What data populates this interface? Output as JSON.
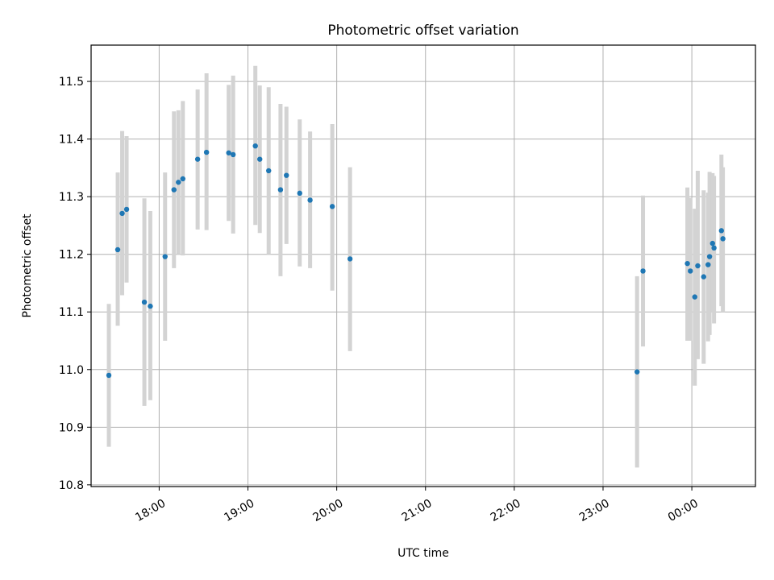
{
  "chart_data": {
    "type": "scatter",
    "title": "Photometric offset variation",
    "xlabel": "UTC time",
    "ylabel": "Photometric offset",
    "xlim": [
      "2023-01-01 17:14",
      "2023-01-02 00:43"
    ],
    "ylim": [
      10.797,
      11.563
    ],
    "grid": true,
    "x_ticks": [
      "18:00",
      "19:00",
      "20:00",
      "21:00",
      "22:00",
      "23:00",
      "00:00"
    ],
    "x_tick_times": [
      "2023-01-01 18:00",
      "2023-01-01 19:00",
      "2023-01-01 20:00",
      "2023-01-01 21:00",
      "2023-01-01 22:00",
      "2023-01-01 23:00",
      "2023-01-02 00:00"
    ],
    "y_ticks": [
      "10.8",
      "10.9",
      "11.0",
      "11.1",
      "11.2",
      "11.3",
      "11.4",
      "11.5"
    ],
    "colors": {
      "points": "#1f77b4",
      "errorbars": "#d3d3d3",
      "grid": "#b0b0b0"
    },
    "points": [
      {
        "x": "2023-01-01 17:26",
        "y": 10.99,
        "yerr_low": 10.866,
        "yerr_high": 11.114
      },
      {
        "x": "2023-01-01 17:32",
        "y": 11.208,
        "yerr_low": 11.076,
        "yerr_high": 11.342
      },
      {
        "x": "2023-01-01 17:35",
        "y": 11.271,
        "yerr_low": 11.129,
        "yerr_high": 11.414
      },
      {
        "x": "2023-01-01 17:38",
        "y": 11.278,
        "yerr_low": 11.151,
        "yerr_high": 11.405
      },
      {
        "x": "2023-01-01 17:50",
        "y": 11.117,
        "yerr_low": 10.937,
        "yerr_high": 11.297
      },
      {
        "x": "2023-01-01 17:54",
        "y": 11.11,
        "yerr_low": 10.947,
        "yerr_high": 11.275
      },
      {
        "x": "2023-01-01 18:04",
        "y": 11.196,
        "yerr_low": 11.05,
        "yerr_high": 11.342
      },
      {
        "x": "2023-01-01 18:10",
        "y": 11.312,
        "yerr_low": 11.176,
        "yerr_high": 11.448
      },
      {
        "x": "2023-01-01 18:13",
        "y": 11.325,
        "yerr_low": 11.2,
        "yerr_high": 11.45
      },
      {
        "x": "2023-01-01 18:16",
        "y": 11.331,
        "yerr_low": 11.198,
        "yerr_high": 11.466
      },
      {
        "x": "2023-01-01 18:26",
        "y": 11.365,
        "yerr_low": 11.243,
        "yerr_high": 11.486
      },
      {
        "x": "2023-01-01 18:32",
        "y": 11.377,
        "yerr_low": 11.242,
        "yerr_high": 11.514
      },
      {
        "x": "2023-01-01 18:47",
        "y": 11.376,
        "yerr_low": 11.258,
        "yerr_high": 11.494
      },
      {
        "x": "2023-01-01 18:50",
        "y": 11.373,
        "yerr_low": 11.236,
        "yerr_high": 11.51
      },
      {
        "x": "2023-01-01 19:05",
        "y": 11.388,
        "yerr_low": 11.251,
        "yerr_high": 11.527
      },
      {
        "x": "2023-01-01 19:08",
        "y": 11.365,
        "yerr_low": 11.237,
        "yerr_high": 11.493
      },
      {
        "x": "2023-01-01 19:14",
        "y": 11.345,
        "yerr_low": 11.2,
        "yerr_high": 11.49
      },
      {
        "x": "2023-01-01 19:22",
        "y": 11.312,
        "yerr_low": 11.162,
        "yerr_high": 11.461
      },
      {
        "x": "2023-01-01 19:26",
        "y": 11.337,
        "yerr_low": 11.218,
        "yerr_high": 11.456
      },
      {
        "x": "2023-01-01 19:35",
        "y": 11.306,
        "yerr_low": 11.179,
        "yerr_high": 11.434
      },
      {
        "x": "2023-01-01 19:42",
        "y": 11.294,
        "yerr_low": 11.176,
        "yerr_high": 11.413
      },
      {
        "x": "2023-01-01 19:57",
        "y": 11.283,
        "yerr_low": 11.137,
        "yerr_high": 11.426
      },
      {
        "x": "2023-01-01 20:09",
        "y": 11.192,
        "yerr_low": 11.032,
        "yerr_high": 11.351
      },
      {
        "x": "2023-01-01 23:23",
        "y": 10.996,
        "yerr_low": 10.83,
        "yerr_high": 11.162
      },
      {
        "x": "2023-01-01 23:27",
        "y": 11.171,
        "yerr_low": 11.04,
        "yerr_high": 11.302
      },
      {
        "x": "2023-01-01 23:57",
        "y": 11.184,
        "yerr_low": 11.05,
        "yerr_high": 11.316
      },
      {
        "x": "2023-01-01 23:59",
        "y": 11.171,
        "yerr_low": 11.05,
        "yerr_high": 11.298
      },
      {
        "x": "2023-01-02 00:02",
        "y": 11.126,
        "yerr_low": 10.972,
        "yerr_high": 11.279
      },
      {
        "x": "2023-01-02 00:04",
        "y": 11.18,
        "yerr_low": 11.018,
        "yerr_high": 11.345
      },
      {
        "x": "2023-01-02 00:08",
        "y": 11.161,
        "yerr_low": 11.01,
        "yerr_high": 11.311
      },
      {
        "x": "2023-01-02 00:11",
        "y": 11.182,
        "yerr_low": 11.049,
        "yerr_high": 11.307
      },
      {
        "x": "2023-01-02 00:12",
        "y": 11.196,
        "yerr_low": 11.06,
        "yerr_high": 11.343
      },
      {
        "x": "2023-01-02 00:14",
        "y": 11.219,
        "yerr_low": 11.099,
        "yerr_high": 11.341
      },
      {
        "x": "2023-01-02 00:15",
        "y": 11.211,
        "yerr_low": 11.08,
        "yerr_high": 11.336
      },
      {
        "x": "2023-01-02 00:20",
        "y": 11.241,
        "yerr_low": 11.11,
        "yerr_high": 11.373
      },
      {
        "x": "2023-01-02 00:21",
        "y": 11.227,
        "yerr_low": 11.1,
        "yerr_high": 11.351
      }
    ]
  }
}
